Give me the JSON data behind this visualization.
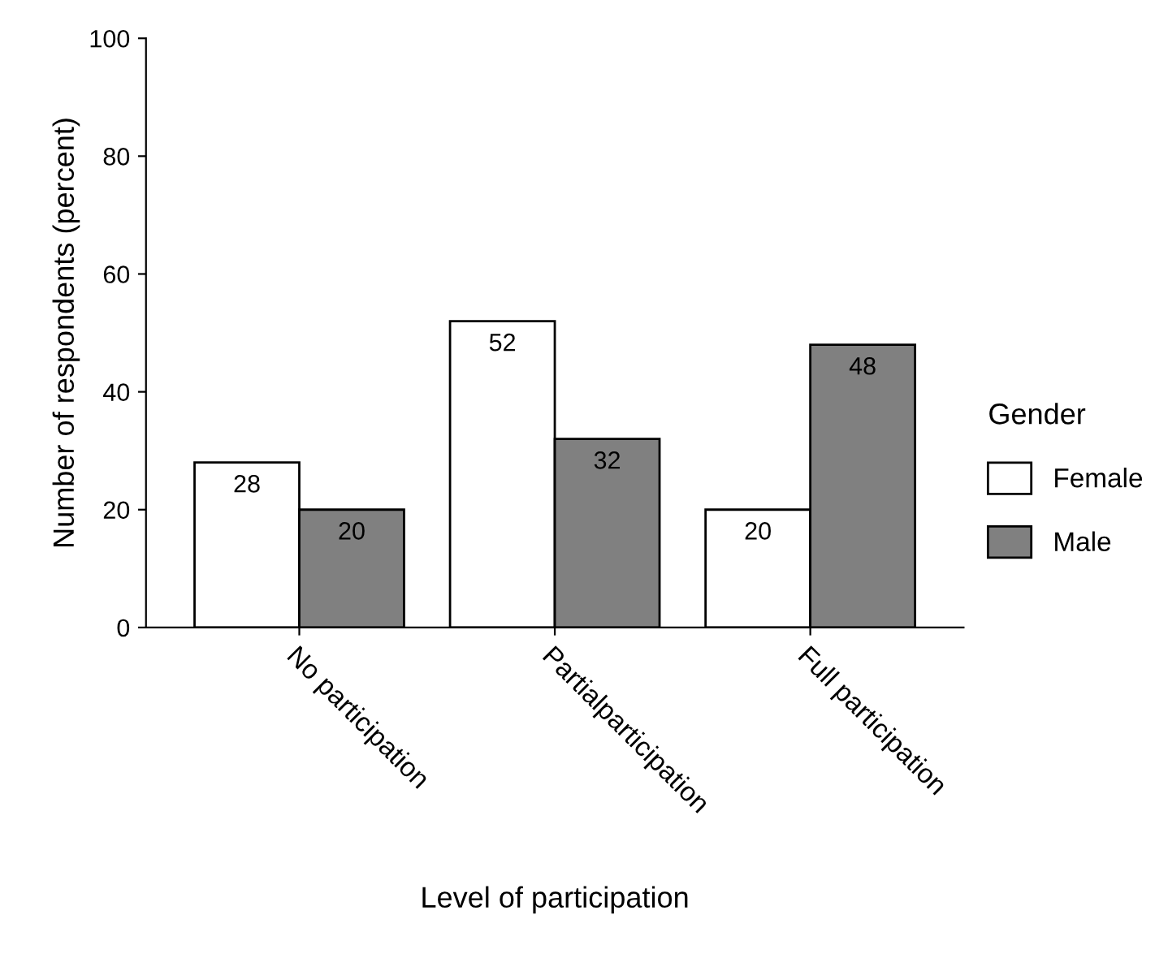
{
  "chart_data": {
    "type": "bar",
    "xlabel": "Level of participation",
    "ylabel": "Number of respondents (percent)",
    "categories": [
      "No participation",
      "Partialparticipation",
      "Full participation"
    ],
    "series": [
      {
        "name": "Female",
        "color": "#ffffff",
        "values": [
          28,
          52,
          20
        ]
      },
      {
        "name": "Male",
        "color": "#808080",
        "values": [
          20,
          32,
          48
        ]
      }
    ],
    "ylim": [
      0,
      100
    ],
    "yticks": [
      0,
      20,
      40,
      60,
      80,
      100
    ],
    "data_labels": true,
    "legend": "right",
    "legend_title": "Gender",
    "grid": false
  }
}
